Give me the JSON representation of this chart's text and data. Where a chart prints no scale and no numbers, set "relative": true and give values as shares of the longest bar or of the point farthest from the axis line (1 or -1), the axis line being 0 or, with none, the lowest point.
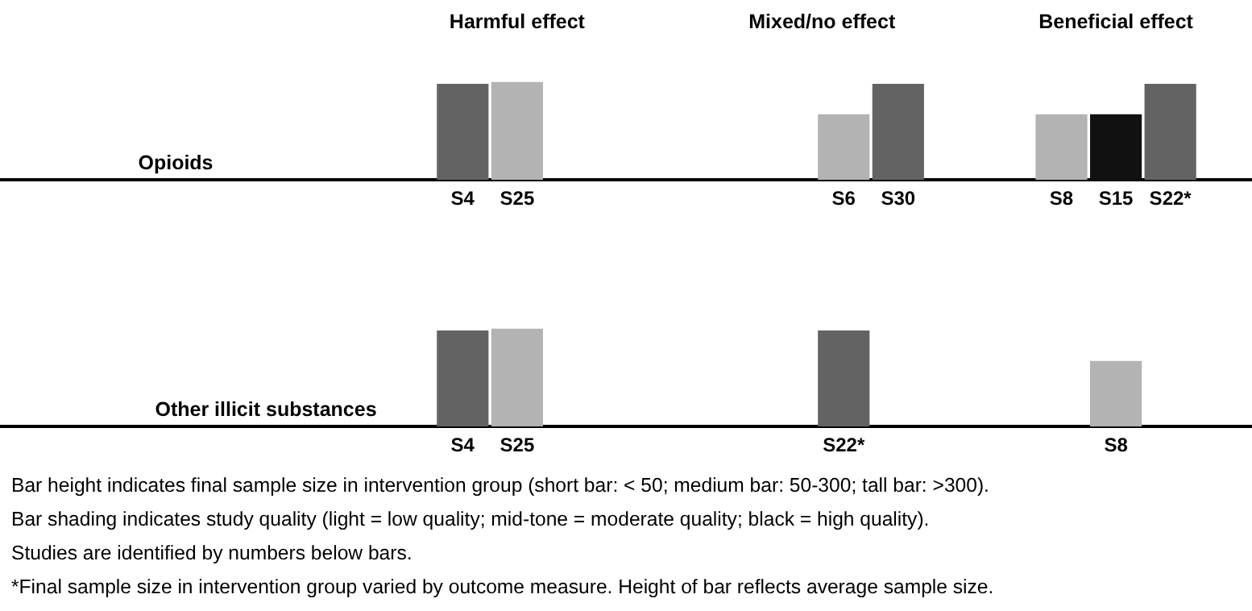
{
  "chart_data": [
    {
      "type": "bar",
      "ylabel": "Opioids",
      "relative": true,
      "categories": [
        null,
        null,
        null,
        null,
        null,
        null,
        null,
        null,
        "S4",
        "S25",
        null,
        null,
        null,
        null,
        null,
        "S6",
        "S30",
        null,
        null,
        "S8",
        "S15",
        "S22*",
        null
      ],
      "values": [
        null,
        null,
        null,
        null,
        null,
        null,
        null,
        null,
        0.98,
        1,
        null,
        null,
        null,
        null,
        null,
        0.67,
        0.98,
        null,
        null,
        0.67,
        0.67,
        0.98,
        null
      ],
      "colors": [
        null,
        null,
        null,
        null,
        null,
        null,
        null,
        null,
        "#636363",
        "#b3b3b3",
        null,
        null,
        null,
        null,
        null,
        "#b3b3b3",
        "#636363",
        null,
        null,
        "#b3b3b3",
        "#111111",
        "#636363",
        null
      ],
      "annotations": [
        "Harmful effect",
        "Mixed/no effect",
        "Beneficial effect"
      ]
    },
    {
      "type": "bar",
      "ylabel": "Other illicit substances",
      "relative": true,
      "categories": [
        null,
        null,
        null,
        null,
        null,
        null,
        null,
        null,
        "S4",
        "S25",
        null,
        null,
        null,
        null,
        null,
        "S22*",
        null,
        null,
        null,
        null,
        "S8",
        null,
        null
      ],
      "values": [
        null,
        null,
        null,
        null,
        null,
        null,
        null,
        null,
        0.98,
        1,
        null,
        null,
        null,
        null,
        null,
        0.98,
        null,
        null,
        null,
        null,
        0.67,
        null,
        null
      ],
      "colors": [
        null,
        null,
        null,
        null,
        null,
        null,
        null,
        null,
        "#636363",
        "#b3b3b3",
        null,
        null,
        null,
        null,
        null,
        "#636363",
        null,
        null,
        null,
        null,
        "#b3b3b3",
        null,
        null
      ],
      "annotations": [
        "Bar height indicates final sample size in intervention group (short bar: < 50; medium bar: 50-300; tall bar: >300).",
        "Bar shading indicates study quality (light = low quality; mid-tone = moderate quality; black = high quality).",
        "Studies are identified by numbers below bars.",
        "*Final sample size in intervention group varied by outcome measure. Height of bar reflects average sample size."
      ]
    }
  ]
}
